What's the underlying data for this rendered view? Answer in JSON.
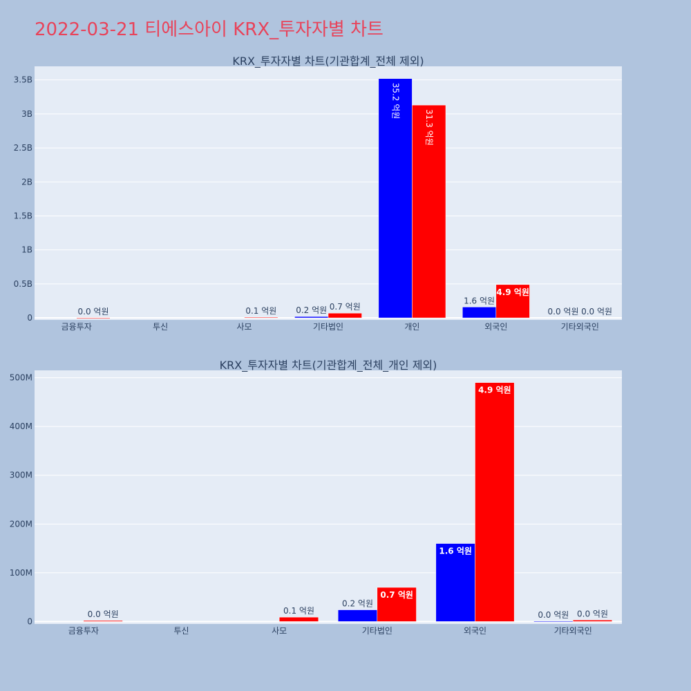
{
  "title": "2022-03-21 티에스아이 KRX_투자자별 차트",
  "colors": {
    "series1": "#0000ff",
    "series2": "#ff0000",
    "plot_bg": "#e5ecf6",
    "page_bg": "#b0c4de",
    "title": "#e8435a"
  },
  "chart_data": [
    {
      "type": "bar",
      "title": "KRX_투자자별 차트(기관합계_전체 제외)",
      "categories": [
        "금융투자",
        "투신",
        "사모",
        "기타법인",
        "개인",
        "외국인",
        "기타외국인"
      ],
      "series": [
        {
          "values": [
            0,
            0,
            0,
            20000000,
            3520000000,
            160000000,
            0
          ],
          "labels": [
            "",
            "",
            "",
            "0.2 억원",
            "35.2 억원",
            "1.6 억원",
            "0.0 억원"
          ]
        },
        {
          "values": [
            1000000,
            0,
            10000000,
            70000000,
            3130000000,
            490000000,
            0
          ],
          "labels": [
            "0.0 억원",
            "",
            "0.1 억원",
            "0.7 억원",
            "31.3 억원",
            "4.9 억원",
            "0.0 억원"
          ]
        }
      ],
      "yticks": [
        "0",
        "0.5B",
        "1B",
        "1.5B",
        "2B",
        "2.5B",
        "3B",
        "3.5B"
      ],
      "ylim": [
        -30000000,
        3700000000
      ]
    },
    {
      "type": "bar",
      "title": "KRX_투자자별 차트(기관합계_전체_개인 제외)",
      "categories": [
        "금융투자",
        "투신",
        "사모",
        "기타법인",
        "외국인",
        "기타외국인"
      ],
      "series": [
        {
          "values": [
            0,
            0,
            0,
            24000000,
            160000000,
            1000000
          ],
          "labels": [
            "",
            "",
            "",
            "0.2 억원",
            "1.6 억원",
            "0.0 억원"
          ]
        },
        {
          "values": [
            2000000,
            0,
            9000000,
            70000000,
            490000000,
            3000000
          ],
          "labels": [
            "0.0 억원",
            "",
            "0.1 억원",
            "0.7 억원",
            "4.9 억원",
            "0.0 억원"
          ]
        }
      ],
      "yticks": [
        "0",
        "100M",
        "200M",
        "300M",
        "400M",
        "500M"
      ],
      "ylim": [
        -5000000,
        515000000
      ]
    }
  ]
}
